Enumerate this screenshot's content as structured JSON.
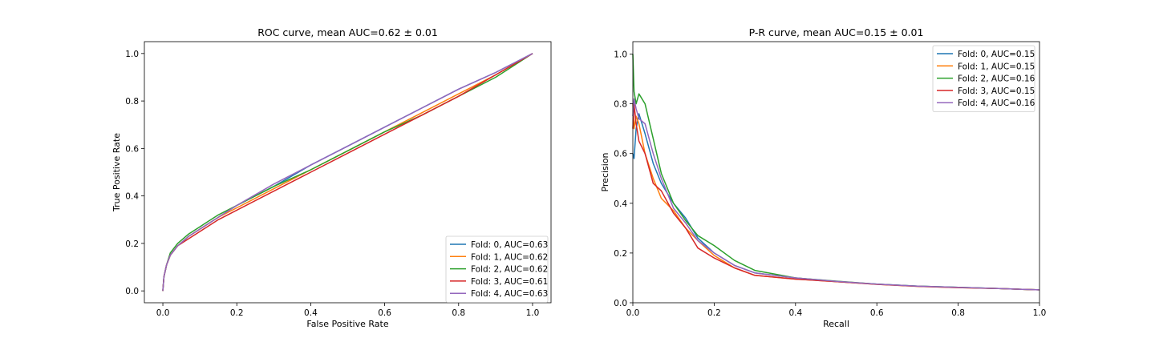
{
  "colors": [
    "#1f77b4",
    "#ff7f0e",
    "#2ca02c",
    "#d62728",
    "#9467bd"
  ],
  "chart_data": [
    {
      "type": "line",
      "title": "ROC curve, mean AUC=0.62 ± 0.01",
      "xlabel": "False Positive Rate",
      "ylabel": "True Positive Rate",
      "xlim": [
        -0.05,
        1.05
      ],
      "ylim": [
        -0.05,
        1.05
      ],
      "xticks": [
        "0.0",
        "0.2",
        "0.4",
        "0.6",
        "0.8",
        "1.0"
      ],
      "yticks": [
        "0.0",
        "0.2",
        "0.4",
        "0.6",
        "0.8",
        "1.0"
      ],
      "grid": false,
      "legend": "lower-right",
      "series": [
        {
          "name": "Fold: 0, AUC=0.63",
          "x": [
            0,
            0.003,
            0.01,
            0.02,
            0.04,
            0.07,
            0.1,
            0.15,
            0.2,
            0.3,
            0.4,
            0.5,
            0.6,
            0.7,
            0.8,
            0.9,
            1.0
          ],
          "y": [
            0,
            0.06,
            0.11,
            0.15,
            0.19,
            0.23,
            0.26,
            0.31,
            0.36,
            0.44,
            0.53,
            0.61,
            0.69,
            0.77,
            0.85,
            0.92,
            1.0
          ]
        },
        {
          "name": "Fold: 1, AUC=0.62",
          "x": [
            0,
            0.003,
            0.01,
            0.02,
            0.04,
            0.07,
            0.1,
            0.15,
            0.2,
            0.3,
            0.4,
            0.5,
            0.6,
            0.7,
            0.8,
            0.9,
            1.0
          ],
          "y": [
            0,
            0.06,
            0.11,
            0.15,
            0.19,
            0.23,
            0.26,
            0.31,
            0.35,
            0.43,
            0.51,
            0.59,
            0.67,
            0.75,
            0.83,
            0.91,
            1.0
          ]
        },
        {
          "name": "Fold: 2, AUC=0.62",
          "x": [
            0,
            0.003,
            0.01,
            0.02,
            0.04,
            0.07,
            0.1,
            0.15,
            0.2,
            0.3,
            0.4,
            0.5,
            0.6,
            0.7,
            0.8,
            0.9,
            1.0
          ],
          "y": [
            0,
            0.06,
            0.11,
            0.16,
            0.2,
            0.24,
            0.27,
            0.32,
            0.36,
            0.44,
            0.51,
            0.59,
            0.67,
            0.74,
            0.82,
            0.9,
            1.0
          ]
        },
        {
          "name": "Fold: 3, AUC=0.61",
          "x": [
            0,
            0.003,
            0.01,
            0.02,
            0.04,
            0.07,
            0.1,
            0.15,
            0.2,
            0.3,
            0.4,
            0.5,
            0.6,
            0.7,
            0.8,
            0.9,
            1.0
          ],
          "y": [
            0,
            0.06,
            0.11,
            0.15,
            0.19,
            0.22,
            0.25,
            0.3,
            0.34,
            0.42,
            0.5,
            0.58,
            0.66,
            0.74,
            0.82,
            0.91,
            1.0
          ]
        },
        {
          "name": "Fold: 4, AUC=0.63",
          "x": [
            0,
            0.003,
            0.01,
            0.02,
            0.04,
            0.07,
            0.1,
            0.15,
            0.2,
            0.3,
            0.4,
            0.5,
            0.6,
            0.7,
            0.8,
            0.9,
            1.0
          ],
          "y": [
            0,
            0.06,
            0.11,
            0.15,
            0.19,
            0.23,
            0.26,
            0.31,
            0.36,
            0.45,
            0.53,
            0.61,
            0.69,
            0.77,
            0.85,
            0.92,
            1.0
          ]
        }
      ]
    },
    {
      "type": "line",
      "title": "P-R curve, mean AUC=0.15 ± 0.01",
      "xlabel": "Recall",
      "ylabel": "Precision",
      "xlim": [
        0,
        1.0
      ],
      "ylim": [
        0,
        1.05
      ],
      "xticks": [
        "0.0",
        "0.2",
        "0.4",
        "0.6",
        "0.8",
        "1.0"
      ],
      "yticks": [
        "0.0",
        "0.2",
        "0.4",
        "0.6",
        "0.8",
        "1.0"
      ],
      "grid": false,
      "legend": "upper-right",
      "series": [
        {
          "name": "Fold: 0, AUC=0.15",
          "x": [
            0,
            0.003,
            0.008,
            0.015,
            0.03,
            0.05,
            0.07,
            0.1,
            0.13,
            0.16,
            0.2,
            0.25,
            0.3,
            0.4,
            0.5,
            0.6,
            0.7,
            0.8,
            0.9,
            1.0
          ],
          "y": [
            0.6,
            0.58,
            0.7,
            0.76,
            0.68,
            0.56,
            0.48,
            0.4,
            0.34,
            0.26,
            0.2,
            0.15,
            0.12,
            0.1,
            0.085,
            0.075,
            0.067,
            0.062,
            0.057,
            0.052
          ]
        },
        {
          "name": "Fold: 1, AUC=0.15",
          "x": [
            0,
            0.003,
            0.008,
            0.015,
            0.03,
            0.05,
            0.07,
            0.1,
            0.13,
            0.16,
            0.2,
            0.25,
            0.3,
            0.4,
            0.5,
            0.6,
            0.7,
            0.8,
            0.9,
            1.0
          ],
          "y": [
            0.8,
            0.7,
            0.75,
            0.72,
            0.6,
            0.5,
            0.42,
            0.37,
            0.3,
            0.25,
            0.19,
            0.14,
            0.11,
            0.095,
            0.085,
            0.074,
            0.066,
            0.061,
            0.057,
            0.052
          ]
        },
        {
          "name": "Fold: 2, AUC=0.16",
          "x": [
            0,
            0.003,
            0.008,
            0.015,
            0.03,
            0.05,
            0.07,
            0.1,
            0.13,
            0.16,
            0.2,
            0.25,
            0.3,
            0.4,
            0.5,
            0.6,
            0.7,
            0.8,
            0.9,
            1.0
          ],
          "y": [
            1.0,
            0.85,
            0.8,
            0.84,
            0.8,
            0.66,
            0.52,
            0.4,
            0.33,
            0.27,
            0.23,
            0.17,
            0.13,
            0.1,
            0.087,
            0.075,
            0.067,
            0.062,
            0.057,
            0.052
          ]
        },
        {
          "name": "Fold: 3, AUC=0.15",
          "x": [
            0,
            0.003,
            0.008,
            0.015,
            0.03,
            0.05,
            0.07,
            0.1,
            0.13,
            0.16,
            0.2,
            0.25,
            0.3,
            0.4,
            0.5,
            0.6,
            0.7,
            0.8,
            0.9,
            1.0
          ],
          "y": [
            0.7,
            0.8,
            0.72,
            0.65,
            0.6,
            0.48,
            0.45,
            0.36,
            0.3,
            0.22,
            0.18,
            0.14,
            0.11,
            0.095,
            0.085,
            0.074,
            0.066,
            0.061,
            0.057,
            0.052
          ]
        },
        {
          "name": "Fold: 4, AUC=0.16",
          "x": [
            0,
            0.003,
            0.008,
            0.015,
            0.03,
            0.05,
            0.07,
            0.1,
            0.13,
            0.16,
            0.2,
            0.25,
            0.3,
            0.4,
            0.5,
            0.6,
            0.7,
            0.8,
            0.9,
            1.0
          ],
          "y": [
            0.75,
            0.82,
            0.78,
            0.74,
            0.72,
            0.6,
            0.5,
            0.38,
            0.32,
            0.25,
            0.2,
            0.15,
            0.12,
            0.1,
            0.086,
            0.075,
            0.067,
            0.062,
            0.057,
            0.052
          ]
        }
      ]
    }
  ]
}
